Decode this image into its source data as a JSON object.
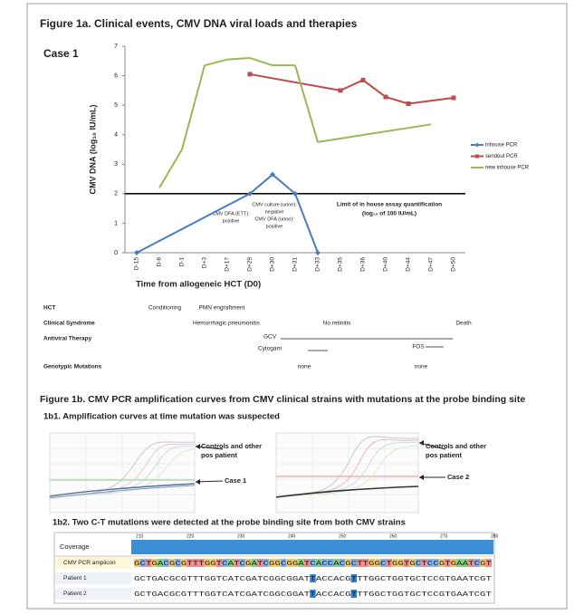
{
  "figure_title": "Figure 1a. Clinical events, CMV DNA viral loads and therapies",
  "case_label": "Case 1",
  "chart_data": {
    "type": "line",
    "categories": [
      "D-15",
      "D-8",
      "D-1",
      "D+3",
      "D+17",
      "D+29",
      "D+30",
      "D+31",
      "D+33",
      "D+35",
      "D+36",
      "D+40",
      "D+44",
      "D+47",
      "D+50"
    ],
    "series": [
      {
        "name": "inhouse PCR",
        "color": "#4a7ebb",
        "marker": "diamond",
        "values": [
          0,
          null,
          null,
          null,
          null,
          2.0,
          2.65,
          2.0,
          0,
          null,
          null,
          null,
          null,
          null,
          null
        ]
      },
      {
        "name": "sendout PCR",
        "color": "#be4b48",
        "marker": "square",
        "values": [
          null,
          null,
          null,
          null,
          null,
          6.05,
          null,
          null,
          null,
          5.5,
          5.85,
          5.28,
          5.05,
          null,
          5.25
        ]
      },
      {
        "name": "new inhouse PCR",
        "color": "#98b954",
        "marker": "none",
        "values": [
          null,
          2.2,
          3.5,
          6.35,
          6.55,
          6.6,
          6.35,
          6.35,
          3.75,
          null,
          null,
          null,
          null,
          4.35,
          null
        ]
      }
    ],
    "span_gaps": true,
    "ylim": [
      0,
      7
    ],
    "yticks": [
      0,
      1,
      2,
      3,
      4,
      5,
      6,
      7
    ],
    "y_label": "CMV DNA (log₁₀ IU/mL)",
    "x_label": "Time from allogeneic HCT (D0)",
    "legend": "right",
    "threshold": {
      "value": 2,
      "label": [
        "Limit of in house assay quantification",
        "(log₁₀ of 100 IU/mL)"
      ]
    },
    "annotations": [
      [
        "CMV DFA (ETT):",
        "positive"
      ],
      [
        "CMV culture (urine):",
        "negative",
        "CMV DFA (urine):",
        "positive"
      ]
    ]
  },
  "clinical_table": [
    {
      "label": "HCT",
      "items": [
        "Conditioning",
        "PMN engraftment"
      ]
    },
    {
      "label": "Clinical Syndrome",
      "items": [
        "Hemorrhagic pneumonitis",
        "No retinitis",
        "Death"
      ]
    },
    {
      "label": "Antiviral Therapy",
      "items": [
        "GCV",
        "Cytogam",
        "FOS"
      ]
    },
    {
      "label": "Genotypic Mutations",
      "items": [
        "none",
        "none"
      ]
    }
  ],
  "figure_1b": {
    "title": "Figure 1b. CMV PCR amplification curves from CMV clinical strains with mutations at the probe binding site",
    "panel_1": {
      "title": "1b1. Amplification curves at time mutation was suspected",
      "plots": [
        {
          "annotations": [
            "Controls and other",
            "pos patient",
            "Case 1"
          ]
        },
        {
          "annotations": [
            "Controls and other",
            "pos patient",
            "Case 2"
          ]
        }
      ]
    },
    "panel_2": {
      "title": "1b2. Two C-T mutations were detected at the probe binding site from both CMV strains",
      "coverage_label": "Coverage",
      "ruler": [
        "210",
        "220",
        "230",
        "240",
        "250",
        "260",
        "270",
        "280"
      ],
      "rows": [
        {
          "label": "CMV PCR amplicon",
          "sequence": "GCTGACGCGTTTGGTCATCGATCGGCGGATCACCACGCTTGGCTGGTGCTCCGTGAATCGT"
        },
        {
          "label": "Patient 1",
          "sequence": "GCTGACGCGTTTGGTCATCGATCGGCGGATTACCACGTTTGGCTGGTGCTCCGTGAATCGT"
        },
        {
          "label": "Patient 2",
          "sequence": "GCTGACGCGTTTGGTCATCGATCGGCGGATTACCACGTTTGGCTGGTGCTCCGTGAATCGT"
        }
      ]
    }
  }
}
